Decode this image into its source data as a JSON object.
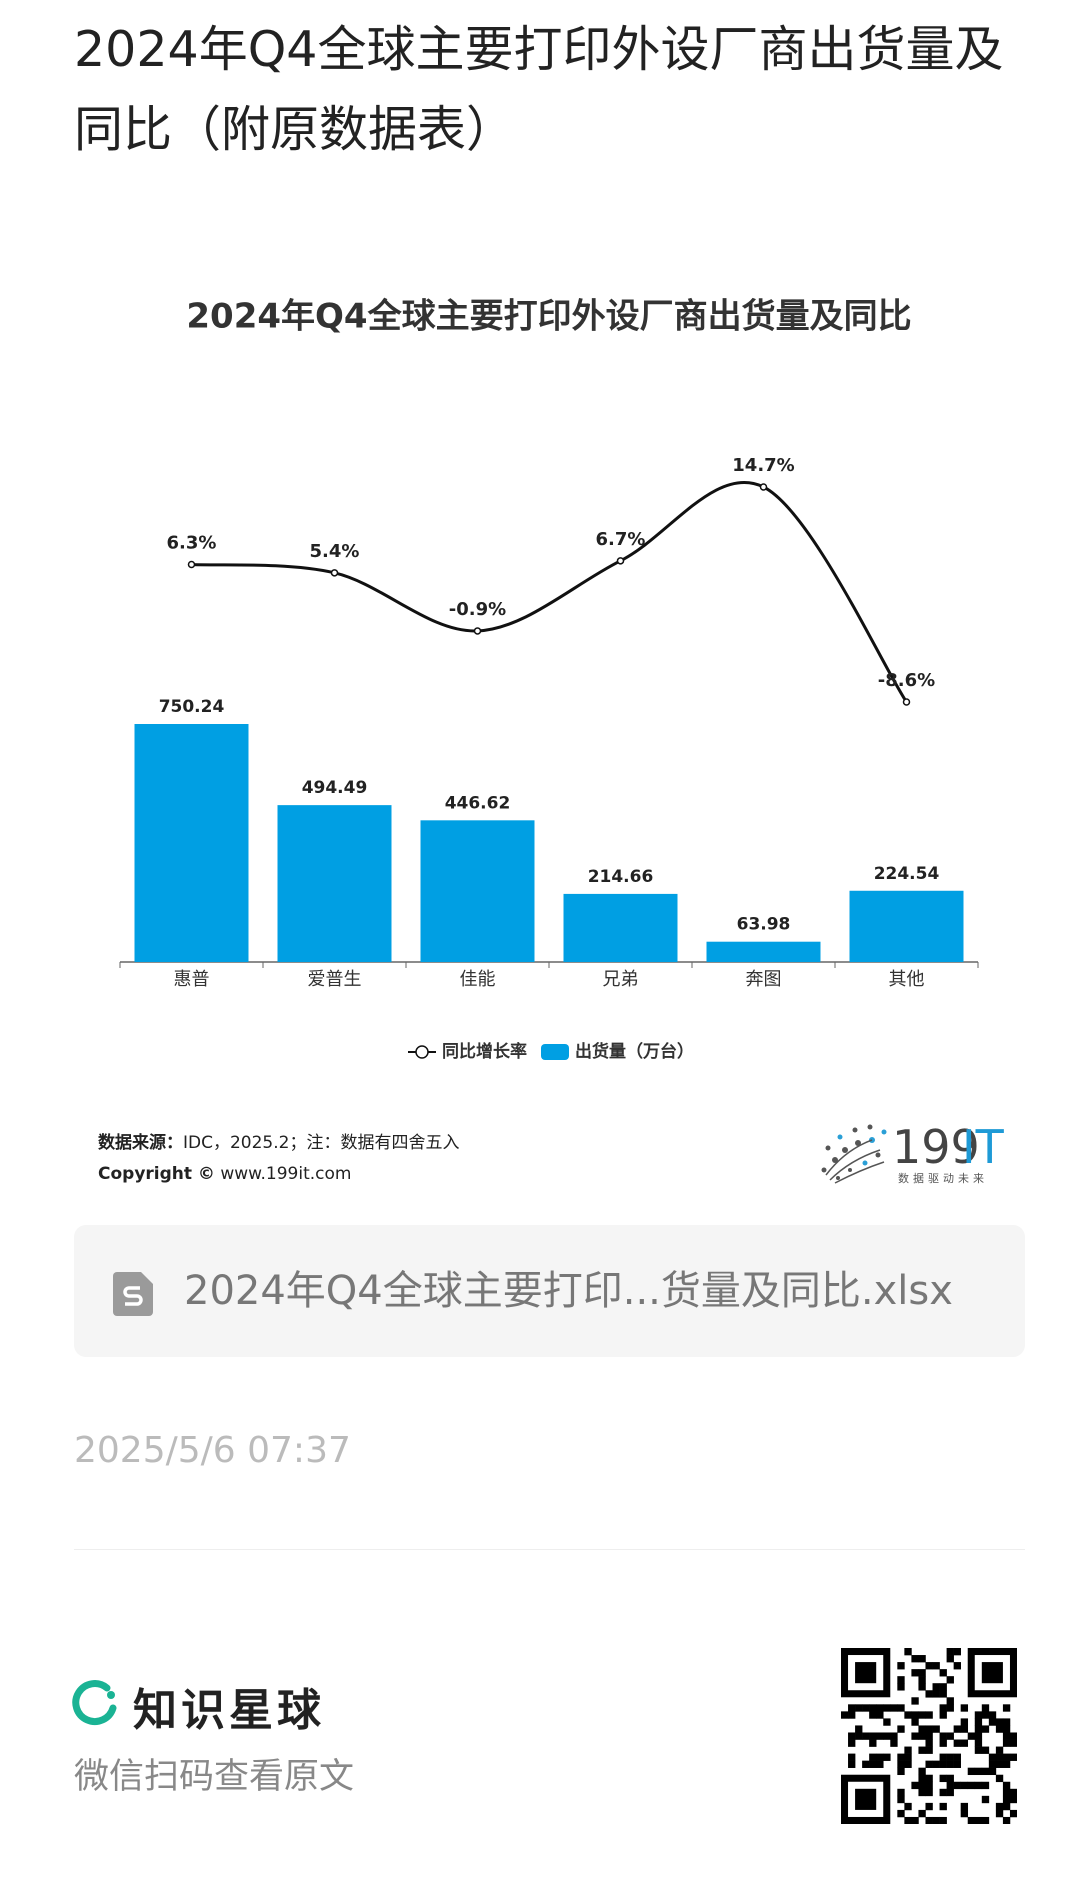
{
  "header": {
    "title": "2024年Q4全球主要打印外设厂商出货量及同比（附原数据表）"
  },
  "chart_data": {
    "type": "bar-line",
    "title": "2024年Q4全球主要打印外设厂商出货量及同比",
    "categories": [
      "惠普",
      "爱普生",
      "佳能",
      "兄弟",
      "奔图",
      "其他"
    ],
    "series": [
      {
        "name": "同比增长率",
        "type": "line",
        "axis": "y2",
        "color": "#111111",
        "values": [
          6.3,
          5.4,
          -0.9,
          6.7,
          14.7,
          -8.6
        ],
        "value_labels": [
          "6.3%",
          "5.4%",
          "-0.9%",
          "6.7%",
          "14.7%",
          "-8.6%"
        ]
      },
      {
        "name": "出货量（万台）",
        "type": "bar",
        "color": "#009fe3",
        "values": [
          750.24,
          494.49,
          446.62,
          214.66,
          63.98,
          224.54
        ]
      }
    ]
  },
  "source": {
    "label": "数据来源：",
    "text": "IDC，2025.2；注：数据有四舍五入",
    "copyright_label": "Copyright ©",
    "copyright_site": "www.199it.com"
  },
  "logo": {
    "number": "199",
    "letters": "IT",
    "slogan": "数据驱动未来"
  },
  "attachment": {
    "file_name": "2024年Q4全球主要打印...货量及同比.xlsx"
  },
  "post": {
    "time": "2025/5/6 07:37"
  },
  "footer": {
    "brand": "知识星球",
    "hint": "微信扫码查看原文"
  }
}
